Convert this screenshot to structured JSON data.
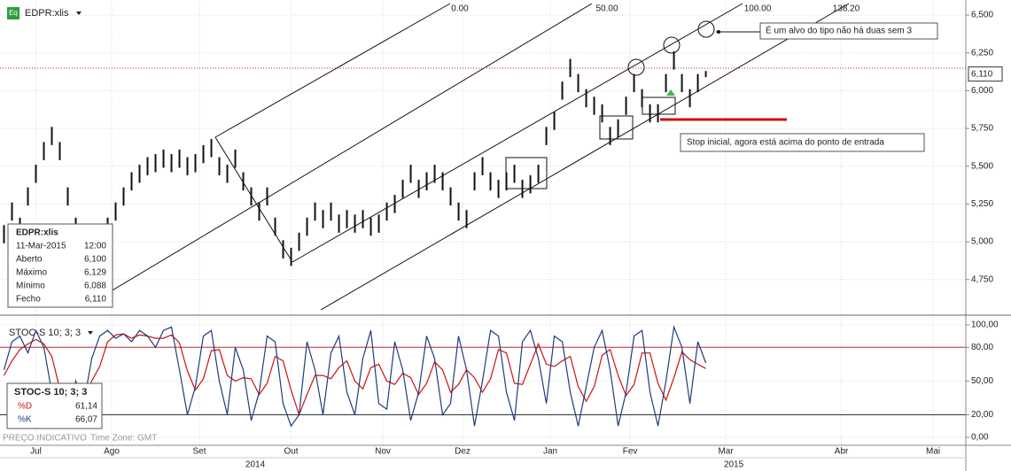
{
  "header": {
    "icon": "Eq",
    "symbol": "EDPR:xlis"
  },
  "footer": {
    "source": "PREÇO INDICATIVO",
    "timezone": "Time Zone: GMT"
  },
  "chart_data": [
    {
      "type": "ohlc",
      "x": [
        1,
        3,
        5,
        7,
        9,
        11,
        13,
        15,
        17,
        19,
        21,
        23,
        25,
        27,
        29,
        31,
        33,
        35,
        37,
        39,
        41,
        43,
        45,
        47,
        49,
        51,
        53,
        55,
        57,
        59,
        61,
        63,
        65,
        67,
        69,
        71,
        73,
        75,
        77,
        79,
        81,
        83,
        85,
        87,
        89,
        91,
        93,
        95,
        97,
        99,
        101,
        103,
        105,
        107,
        109,
        111,
        113,
        115,
        117,
        119,
        121,
        123,
        125,
        127,
        129,
        131,
        133,
        135,
        137,
        139,
        141,
        143,
        145,
        147,
        149,
        151,
        153,
        155,
        157,
        159,
        161,
        163,
        165,
        167,
        169,
        171,
        173,
        175,
        177
      ],
      "high": [
        5.11,
        5.26,
        5.16,
        5.36,
        5.51,
        5.66,
        5.76,
        5.66,
        5.36,
        5.16,
        5.06,
        5.01,
        5.11,
        5.16,
        5.26,
        5.36,
        5.46,
        5.51,
        5.56,
        5.58,
        5.61,
        5.58,
        5.61,
        5.56,
        5.58,
        5.64,
        5.68,
        5.56,
        5.51,
        5.61,
        5.46,
        5.36,
        5.26,
        5.36,
        5.16,
        5.01,
        4.96,
        5.06,
        5.16,
        5.26,
        5.21,
        5.26,
        5.18,
        5.21,
        5.18,
        5.21,
        5.16,
        5.18,
        5.26,
        5.31,
        5.41,
        5.51,
        5.41,
        5.46,
        5.51,
        5.46,
        5.36,
        5.26,
        5.21,
        5.46,
        5.56,
        5.46,
        5.41,
        5.46,
        5.51,
        5.41,
        5.44,
        5.51,
        5.76,
        5.86,
        6.06,
        6.21,
        6.11,
        6.01,
        5.96,
        5.91,
        5.76,
        5.81,
        5.96,
        6.11,
        6.01,
        5.91,
        5.91,
        6.11,
        6.26,
        6.11,
        6.01,
        6.11,
        6.13
      ],
      "low": [
        4.99,
        5.14,
        5.04,
        5.24,
        5.39,
        5.54,
        5.64,
        5.54,
        5.24,
        5.04,
        4.94,
        4.89,
        4.99,
        5.04,
        5.14,
        5.24,
        5.34,
        5.39,
        5.44,
        5.46,
        5.49,
        5.46,
        5.49,
        5.44,
        5.46,
        5.52,
        5.56,
        5.44,
        5.39,
        5.49,
        5.34,
        5.24,
        5.14,
        5.24,
        5.04,
        4.89,
        4.84,
        4.94,
        5.04,
        5.14,
        5.09,
        5.14,
        5.06,
        5.09,
        5.06,
        5.09,
        5.04,
        5.06,
        5.14,
        5.19,
        5.29,
        5.39,
        5.29,
        5.34,
        5.39,
        5.34,
        5.24,
        5.14,
        5.09,
        5.34,
        5.44,
        5.34,
        5.29,
        5.34,
        5.39,
        5.29,
        5.32,
        5.39,
        5.64,
        5.74,
        5.94,
        6.09,
        5.99,
        5.89,
        5.84,
        5.79,
        5.64,
        5.69,
        5.84,
        5.99,
        5.89,
        5.79,
        5.79,
        5.99,
        6.14,
        5.99,
        5.89,
        5.99,
        6.09
      ],
      "color": "#111111",
      "xlim": [
        0,
        242.2
      ],
      "ylim": [
        4.52,
        6.6
      ],
      "yticks": [
        {
          "value": 4.75,
          "label": "4,750"
        },
        {
          "value": 5.0,
          "label": "5,000"
        },
        {
          "value": 5.25,
          "label": "5,250"
        },
        {
          "value": 5.5,
          "label": "5,500"
        },
        {
          "value": 5.75,
          "label": "5,750"
        },
        {
          "value": 6.0,
          "label": "6,000"
        },
        {
          "value": 6.25,
          "label": "6,250"
        },
        {
          "value": 6.5,
          "label": "6,500"
        }
      ],
      "grid": true,
      "last_price": {
        "value": 6.11,
        "label": "6,110"
      },
      "fib_labels": [
        "0.00",
        "50.00",
        "100.00",
        "138.20"
      ],
      "annotations": [
        "É um alvo do tipo não há duas sem 3",
        "Stop inicial, agora está acima do ponto de entrada"
      ],
      "info_box": {
        "title": "EDPR:xlis",
        "date": "11-Mar-2015",
        "time": "12:00",
        "rows": [
          [
            "Aberto",
            "6,100"
          ],
          [
            "Máximo",
            "6,129"
          ],
          [
            "Mínimo",
            "6,088"
          ],
          [
            "Fecho",
            "6,110"
          ]
        ]
      }
    },
    {
      "type": "line",
      "title": "STOC-S 10; 3; 3",
      "x": [
        1,
        3,
        5,
        7,
        9,
        11,
        13,
        15,
        17,
        19,
        21,
        23,
        25,
        27,
        29,
        31,
        33,
        35,
        37,
        39,
        41,
        43,
        45,
        47,
        49,
        51,
        53,
        55,
        57,
        59,
        61,
        63,
        65,
        67,
        69,
        71,
        73,
        75,
        77,
        79,
        81,
        83,
        85,
        87,
        89,
        91,
        93,
        95,
        97,
        99,
        101,
        103,
        105,
        107,
        109,
        111,
        113,
        115,
        117,
        119,
        121,
        123,
        125,
        127,
        129,
        131,
        133,
        135,
        137,
        139,
        141,
        143,
        145,
        147,
        149,
        151,
        153,
        155,
        157,
        159,
        161,
        163,
        165,
        167,
        169,
        171,
        173,
        175,
        177
      ],
      "series": [
        {
          "name": "%D",
          "color": "#cc1111",
          "legend_value": "61,14",
          "values": [
            55,
            68,
            78,
            83,
            87,
            83,
            72,
            43,
            22,
            25,
            32,
            50,
            63,
            85,
            91,
            92,
            88,
            91,
            90,
            88,
            88,
            91,
            84,
            59,
            42,
            52,
            77,
            78,
            55,
            50,
            53,
            52,
            38,
            48,
            72,
            68,
            42,
            20,
            38,
            55,
            55,
            52,
            62,
            68,
            50,
            43,
            62,
            65,
            50,
            47,
            57,
            53,
            38,
            48,
            67,
            60,
            40,
            47,
            60,
            53,
            40,
            52,
            78,
            75,
            48,
            47,
            65,
            83,
            65,
            63,
            68,
            72,
            45,
            32,
            45,
            73,
            78,
            55,
            37,
            47,
            75,
            75,
            48,
            33,
            53,
            76,
            69,
            65,
            61.14
          ]
        },
        {
          "name": "%K",
          "color": "#1f3d7a",
          "legend_value": "66,07",
          "values": [
            60,
            85,
            90,
            75,
            95,
            80,
            40,
            10,
            15,
            50,
            30,
            70,
            90,
            95,
            88,
            92,
            85,
            95,
            90,
            80,
            95,
            98,
            60,
            20,
            45,
            90,
            95,
            50,
            20,
            80,
            60,
            15,
            40,
            90,
            85,
            30,
            10,
            20,
            85,
            60,
            20,
            75,
            90,
            40,
            20,
            70,
            95,
            30,
            25,
            85,
            60,
            15,
            40,
            90,
            70,
            20,
            30,
            90,
            60,
            10,
            50,
            95,
            90,
            40,
            15,
            85,
            95,
            70,
            30,
            90,
            85,
            40,
            10,
            45,
            80,
            95,
            60,
            10,
            40,
            90,
            95,
            40,
            10,
            50,
            98,
            80,
            30,
            85,
            66.07
          ]
        }
      ],
      "hlines": [
        {
          "value": 80,
          "color": "#b83030"
        },
        {
          "value": 20,
          "color": "#333333"
        }
      ],
      "xlim": [
        0,
        242.2
      ],
      "xticks": [
        {
          "value": 9,
          "label": "Jul"
        },
        {
          "value": 28,
          "label": "Ago"
        },
        {
          "value": 50,
          "label": "Set"
        },
        {
          "value": 73,
          "label": "Out"
        },
        {
          "value": 96,
          "label": "Nov"
        },
        {
          "value": 116,
          "label": "Dez"
        },
        {
          "value": 138,
          "label": "Jan"
        },
        {
          "value": 158,
          "label": "Fev"
        },
        {
          "value": 182,
          "label": "Mar"
        },
        {
          "value": 211,
          "label": "Abr"
        },
        {
          "value": 234,
          "label": "Mai"
        }
      ],
      "year_ticks": [
        {
          "value": 64,
          "label": "2014"
        },
        {
          "value": 184,
          "label": "2015"
        }
      ],
      "ylim": [
        -8.7,
        107
      ],
      "yticks": [
        {
          "value": 0,
          "label": "0,00"
        },
        {
          "value": 20,
          "label": "20,00"
        },
        {
          "value": 50,
          "label": "50,00"
        },
        {
          "value": 80,
          "label": "80,00"
        },
        {
          "value": 100,
          "label": "100,00"
        }
      ],
      "grid": true
    }
  ]
}
